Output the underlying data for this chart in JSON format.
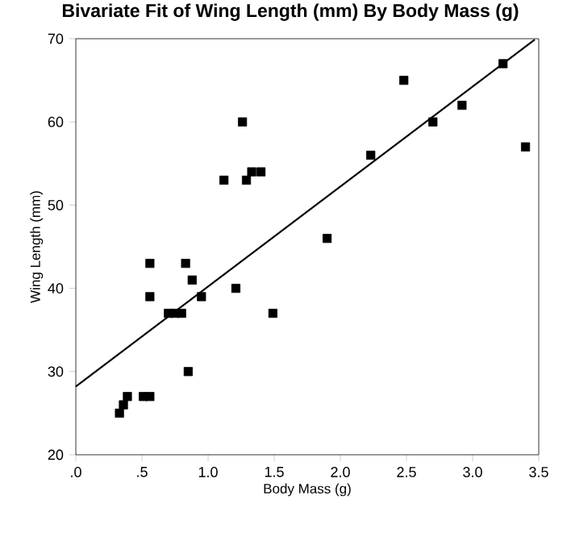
{
  "chart_data": {
    "type": "scatter",
    "title": "Bivariate Fit of Wing Length (mm) By Body Mass (g)",
    "xlabel": "Body Mass (g)",
    "ylabel": "Wing Length (mm)",
    "xlim": [
      0,
      3.5
    ],
    "ylim": [
      20,
      70
    ],
    "xticks": [
      {
        "value": 0,
        "label": ".0"
      },
      {
        "value": 0.5,
        "label": ".5"
      },
      {
        "value": 1,
        "label": "1.0"
      },
      {
        "value": 1.5,
        "label": "1.5"
      },
      {
        "value": 2,
        "label": "2.0"
      },
      {
        "value": 2.5,
        "label": "2.5"
      },
      {
        "value": 3,
        "label": "3.0"
      },
      {
        "value": 3.5,
        "label": "3.5"
      }
    ],
    "yticks": [
      20,
      30,
      40,
      50,
      60,
      70
    ],
    "series": [
      {
        "color": "#000000",
        "marker": "square",
        "x": [
          0.33,
          0.36,
          0.39,
          0.51,
          0.56,
          0.56,
          0.56,
          0.83,
          0.88,
          0.7,
          0.75,
          0.8,
          0.95,
          0.85,
          1.21,
          1.49,
          1.26,
          1.12,
          1.29,
          1.33,
          1.4,
          2.48,
          1.9,
          2.23,
          2.7,
          2.92,
          3.23,
          3.4
        ],
        "values": [
          25,
          26,
          27,
          27,
          27,
          43,
          39,
          43,
          41,
          37,
          37,
          37,
          39,
          30,
          40,
          37,
          60,
          53,
          53,
          54,
          54,
          65,
          46,
          56,
          60,
          62,
          67,
          57
        ]
      },
      {
        "type": "line",
        "color": "#000000",
        "marker": "none",
        "x": [
          0,
          3.47
        ],
        "values": [
          28.2,
          69.9
        ]
      }
    ]
  }
}
